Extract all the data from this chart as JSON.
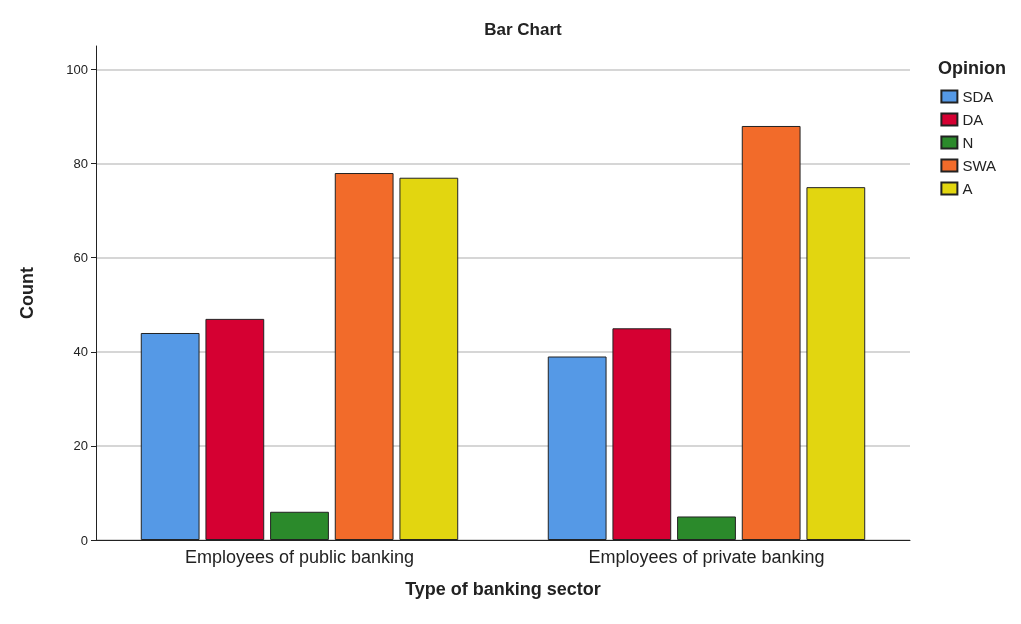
{
  "chart_data": {
    "type": "bar",
    "title": "Bar Chart",
    "xlabel": "Type of banking sector",
    "ylabel": "Count",
    "legend_title": "Opinion",
    "categories": [
      "Employees of public banking",
      "Employees of private banking"
    ],
    "series": [
      {
        "name": "SDA",
        "color": "#5599e6",
        "values": [
          44,
          39
        ]
      },
      {
        "name": "DA",
        "color": "#d50032",
        "values": [
          47,
          45
        ]
      },
      {
        "name": "N",
        "color": "#2b8a2b",
        "values": [
          6,
          5
        ]
      },
      {
        "name": "SWA",
        "color": "#f26b2a",
        "values": [
          78,
          88
        ]
      },
      {
        "name": "A",
        "color": "#e2d610",
        "values": [
          77,
          75
        ]
      }
    ],
    "ylim": [
      0,
      105
    ],
    "yticks": [
      0,
      20,
      40,
      60,
      80,
      100
    ],
    "grid": "y",
    "legend": "top right"
  }
}
